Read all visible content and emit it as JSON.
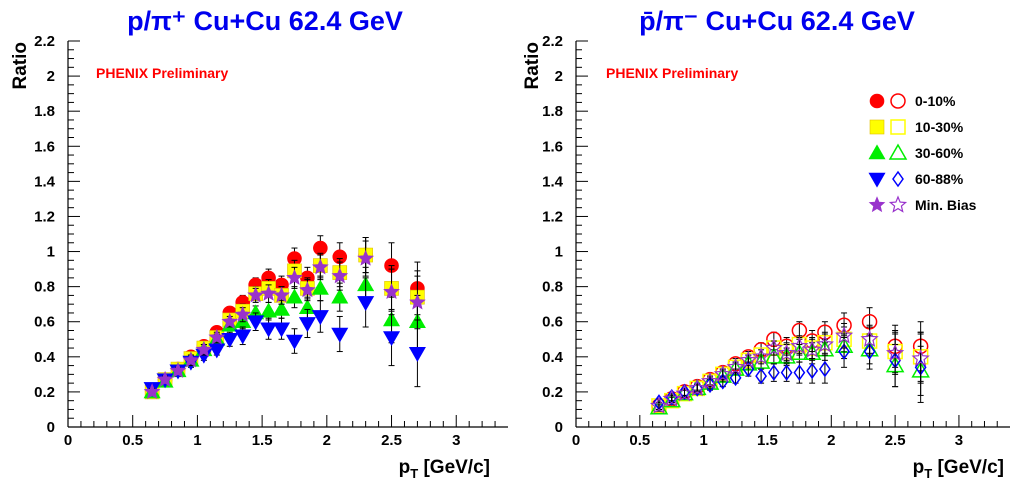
{
  "chart_data": [
    {
      "type": "scatter",
      "title": "p/π⁺ Cu+Cu 62.4 GeV",
      "xlabel": "pT [GeV/c]",
      "ylabel": "Ratio",
      "annotation": "PHENIX Preliminary",
      "xlim": [
        0,
        3.4
      ],
      "ylim": [
        0,
        2.2
      ],
      "xticks": [
        "0",
        "0.5",
        "1",
        "1.5",
        "2",
        "2.5",
        "3"
      ],
      "yticks": [
        "0",
        "0.2",
        "0.4",
        "0.6",
        "0.8",
        "1",
        "1.2",
        "1.4",
        "1.6",
        "1.8",
        "2",
        "2.2"
      ],
      "grid": false,
      "series": [
        {
          "name": "0-10%",
          "color": "#ff0000",
          "marker": "circle-filled",
          "x": [
            0.65,
            0.75,
            0.85,
            0.95,
            1.05,
            1.15,
            1.25,
            1.35,
            1.45,
            1.55,
            1.65,
            1.75,
            1.85,
            1.95,
            2.1,
            2.3,
            2.5,
            2.7
          ],
          "y": [
            0.21,
            0.27,
            0.33,
            0.4,
            0.46,
            0.54,
            0.65,
            0.71,
            0.81,
            0.85,
            0.81,
            0.96,
            0.85,
            1.02,
            0.97,
            0.98,
            0.92,
            0.79
          ],
          "err": [
            0.02,
            0.02,
            0.02,
            0.03,
            0.03,
            0.03,
            0.03,
            0.04,
            0.04,
            0.05,
            0.05,
            0.06,
            0.06,
            0.07,
            0.08,
            0.1,
            0.13,
            0.15
          ]
        },
        {
          "name": "10-30%",
          "color": "#ffff00",
          "marker": "square-filled",
          "x": [
            0.65,
            0.75,
            0.85,
            0.95,
            1.05,
            1.15,
            1.25,
            1.35,
            1.45,
            1.55,
            1.65,
            1.75,
            1.85,
            1.95,
            2.1,
            2.3,
            2.5,
            2.7
          ],
          "y": [
            0.2,
            0.27,
            0.33,
            0.39,
            0.45,
            0.51,
            0.61,
            0.66,
            0.76,
            0.79,
            0.75,
            0.89,
            0.79,
            0.92,
            0.88,
            0.98,
            0.79,
            0.74
          ],
          "err": [
            0.02,
            0.02,
            0.02,
            0.03,
            0.03,
            0.03,
            0.03,
            0.04,
            0.04,
            0.05,
            0.05,
            0.06,
            0.06,
            0.07,
            0.08,
            0.1,
            0.13,
            0.15
          ]
        },
        {
          "name": "30-60%",
          "color": "#00ee00",
          "marker": "triangle-up-filled",
          "x": [
            0.65,
            0.75,
            0.85,
            0.95,
            1.05,
            1.15,
            1.25,
            1.35,
            1.45,
            1.55,
            1.65,
            1.75,
            1.85,
            1.95,
            2.1,
            2.3,
            2.5,
            2.7
          ],
          "y": [
            0.2,
            0.26,
            0.32,
            0.38,
            0.44,
            0.5,
            0.58,
            0.6,
            0.65,
            0.66,
            0.67,
            0.74,
            0.68,
            0.79,
            0.74,
            0.81,
            0.61,
            0.6
          ],
          "err": [
            0.02,
            0.02,
            0.02,
            0.03,
            0.03,
            0.03,
            0.03,
            0.04,
            0.04,
            0.05,
            0.05,
            0.06,
            0.06,
            0.07,
            0.08,
            0.1,
            0.13,
            0.15
          ]
        },
        {
          "name": "60-88%",
          "color": "#0000ff",
          "marker": "triangle-down-filled",
          "x": [
            0.65,
            0.75,
            0.85,
            0.95,
            1.05,
            1.15,
            1.25,
            1.35,
            1.45,
            1.55,
            1.65,
            1.75,
            1.85,
            1.95,
            2.1,
            2.3,
            2.5,
            2.7
          ],
          "y": [
            0.22,
            0.27,
            0.32,
            0.37,
            0.41,
            0.44,
            0.5,
            0.52,
            0.6,
            0.56,
            0.56,
            0.49,
            0.59,
            0.63,
            0.53,
            0.71,
            0.51,
            0.42
          ],
          "err": [
            0.02,
            0.02,
            0.03,
            0.03,
            0.03,
            0.03,
            0.04,
            0.05,
            0.05,
            0.06,
            0.06,
            0.07,
            0.08,
            0.09,
            0.1,
            0.14,
            0.16,
            0.19
          ]
        },
        {
          "name": "Min. Bias",
          "color": "#9933cc",
          "marker": "star-filled",
          "x": [
            0.65,
            0.75,
            0.85,
            0.95,
            1.05,
            1.15,
            1.25,
            1.35,
            1.45,
            1.55,
            1.65,
            1.75,
            1.85,
            1.95,
            2.1,
            2.3,
            2.5,
            2.7
          ],
          "y": [
            0.2,
            0.27,
            0.32,
            0.38,
            0.44,
            0.51,
            0.6,
            0.64,
            0.75,
            0.76,
            0.75,
            0.85,
            0.78,
            0.91,
            0.86,
            0.96,
            0.77,
            0.71
          ],
          "err": [
            0.02,
            0.02,
            0.02,
            0.03,
            0.03,
            0.03,
            0.03,
            0.04,
            0.04,
            0.05,
            0.05,
            0.06,
            0.06,
            0.07,
            0.08,
            0.1,
            0.13,
            0.15
          ]
        }
      ]
    },
    {
      "type": "scatter",
      "title": "p̄/π⁻ Cu+Cu 62.4 GeV",
      "xlabel": "pT [GeV/c]",
      "ylabel": "Ratio",
      "annotation": "PHENIX Preliminary",
      "xlim": [
        0,
        3.4
      ],
      "ylim": [
        0,
        2.2
      ],
      "xticks": [
        "0",
        "0.5",
        "1",
        "1.5",
        "2",
        "2.5",
        "3"
      ],
      "yticks": [
        "0",
        "0.2",
        "0.4",
        "0.6",
        "0.8",
        "1",
        "1.2",
        "1.4",
        "1.6",
        "1.8",
        "2",
        "2.2"
      ],
      "grid": false,
      "legend_position": "top-right",
      "series": [
        {
          "name": "0-10%",
          "color": "#ff0000",
          "marker": "circle-open",
          "x": [
            0.65,
            0.75,
            0.85,
            0.95,
            1.05,
            1.15,
            1.25,
            1.35,
            1.45,
            1.55,
            1.65,
            1.75,
            1.85,
            1.95,
            2.1,
            2.3,
            2.5,
            2.7
          ],
          "y": [
            0.12,
            0.16,
            0.2,
            0.23,
            0.27,
            0.31,
            0.36,
            0.4,
            0.44,
            0.5,
            0.46,
            0.55,
            0.49,
            0.54,
            0.58,
            0.6,
            0.46,
            0.46
          ],
          "err": [
            0.02,
            0.02,
            0.02,
            0.02,
            0.03,
            0.03,
            0.03,
            0.03,
            0.04,
            0.04,
            0.05,
            0.05,
            0.06,
            0.06,
            0.07,
            0.08,
            0.12,
            0.14
          ]
        },
        {
          "name": "10-30%",
          "color": "#ffff00",
          "marker": "square-open",
          "x": [
            0.65,
            0.75,
            0.85,
            0.95,
            1.05,
            1.15,
            1.25,
            1.35,
            1.45,
            1.55,
            1.65,
            1.75,
            1.85,
            1.95,
            2.1,
            2.3,
            2.5,
            2.7
          ],
          "y": [
            0.12,
            0.15,
            0.19,
            0.22,
            0.26,
            0.3,
            0.34,
            0.38,
            0.41,
            0.45,
            0.43,
            0.47,
            0.45,
            0.48,
            0.5,
            0.49,
            0.43,
            0.4
          ],
          "err": [
            0.02,
            0.02,
            0.02,
            0.02,
            0.03,
            0.03,
            0.03,
            0.03,
            0.04,
            0.04,
            0.05,
            0.05,
            0.06,
            0.06,
            0.07,
            0.08,
            0.12,
            0.14
          ]
        },
        {
          "name": "30-60%",
          "color": "#00ee00",
          "marker": "triangle-up-open",
          "x": [
            0.65,
            0.75,
            0.85,
            0.95,
            1.05,
            1.15,
            1.25,
            1.35,
            1.45,
            1.55,
            1.65,
            1.75,
            1.85,
            1.95,
            2.1,
            2.3,
            2.5,
            2.7
          ],
          "y": [
            0.11,
            0.15,
            0.19,
            0.22,
            0.25,
            0.29,
            0.33,
            0.36,
            0.37,
            0.4,
            0.4,
            0.42,
            0.42,
            0.44,
            0.46,
            0.44,
            0.35,
            0.32
          ],
          "err": [
            0.02,
            0.02,
            0.02,
            0.02,
            0.03,
            0.03,
            0.03,
            0.03,
            0.04,
            0.04,
            0.05,
            0.05,
            0.06,
            0.06,
            0.07,
            0.08,
            0.12,
            0.14
          ]
        },
        {
          "name": "60-88%",
          "color": "#0000ff",
          "marker": "diamond-open",
          "x": [
            0.65,
            0.75,
            0.85,
            0.95,
            1.05,
            1.15,
            1.25,
            1.35,
            1.45,
            1.55,
            1.65,
            1.75,
            1.85,
            1.95,
            2.1,
            2.3,
            2.5,
            2.7
          ],
          "y": [
            0.14,
            0.17,
            0.2,
            0.22,
            0.24,
            0.26,
            0.28,
            0.33,
            0.29,
            0.31,
            0.31,
            0.31,
            0.32,
            0.33,
            0.43,
            0.43,
            0.38,
            0.34
          ],
          "err": [
            0.02,
            0.02,
            0.02,
            0.02,
            0.03,
            0.03,
            0.03,
            0.04,
            0.04,
            0.05,
            0.05,
            0.06,
            0.07,
            0.08,
            0.09,
            0.1,
            0.15,
            0.2
          ]
        },
        {
          "name": "Min. Bias",
          "color": "#9933cc",
          "marker": "star-open",
          "x": [
            0.65,
            0.75,
            0.85,
            0.95,
            1.05,
            1.15,
            1.25,
            1.35,
            1.45,
            1.55,
            1.65,
            1.75,
            1.85,
            1.95,
            2.1,
            2.3,
            2.5,
            2.7
          ],
          "y": [
            0.12,
            0.16,
            0.19,
            0.22,
            0.26,
            0.3,
            0.34,
            0.38,
            0.4,
            0.45,
            0.42,
            0.46,
            0.44,
            0.47,
            0.52,
            0.5,
            0.42,
            0.39
          ],
          "err": [
            0.02,
            0.02,
            0.02,
            0.02,
            0.03,
            0.03,
            0.03,
            0.03,
            0.04,
            0.04,
            0.05,
            0.05,
            0.06,
            0.06,
            0.07,
            0.08,
            0.12,
            0.14
          ]
        }
      ]
    }
  ]
}
